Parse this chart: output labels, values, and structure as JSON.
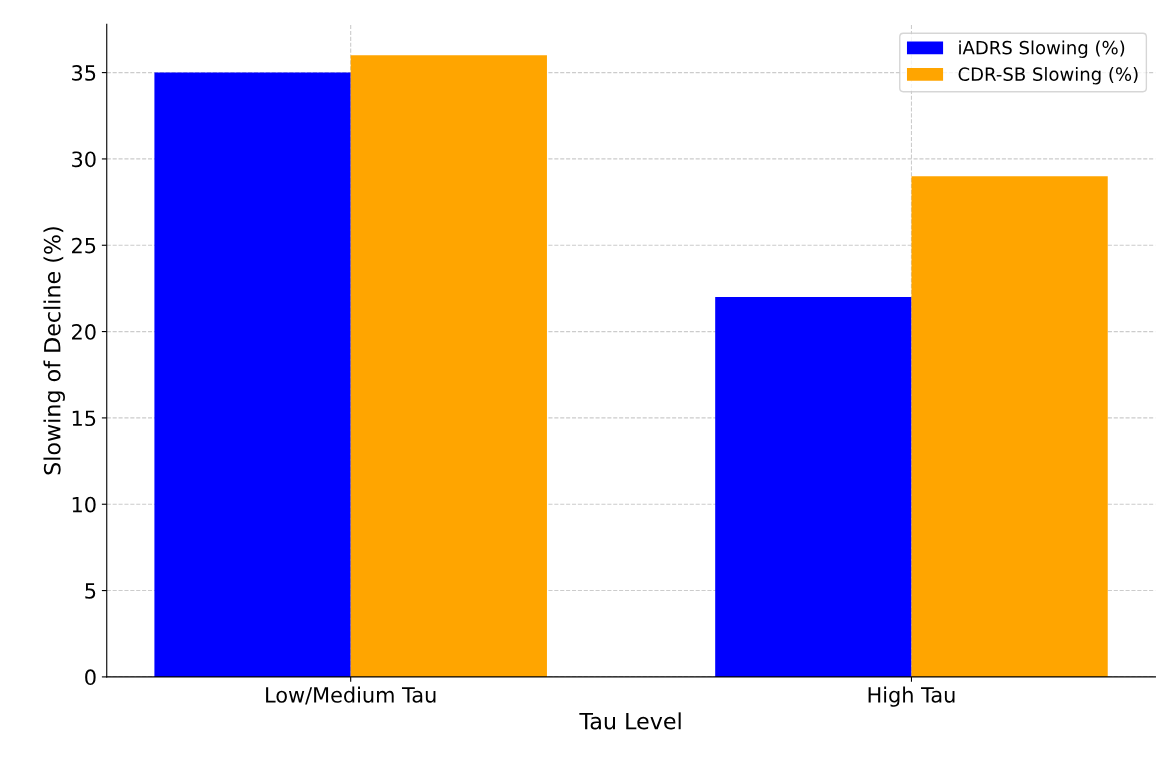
{
  "chart_data": {
    "type": "bar",
    "xlabel": "Tau Level",
    "ylabel": "Slowing of Decline (%)",
    "categories": [
      "Low/Medium Tau",
      "High Tau"
    ],
    "series": [
      {
        "name": "iADRS Slowing (%)",
        "color": "#0000ff",
        "values": [
          35,
          22
        ]
      },
      {
        "name": "CDR-SB Slowing (%)",
        "color": "#ffa500",
        "values": [
          36,
          29
        ]
      }
    ],
    "ylim": [
      0,
      37.8
    ],
    "yticks": [
      0,
      5,
      10,
      15,
      20,
      25,
      30,
      35
    ],
    "grid": true,
    "legend": "top right"
  }
}
